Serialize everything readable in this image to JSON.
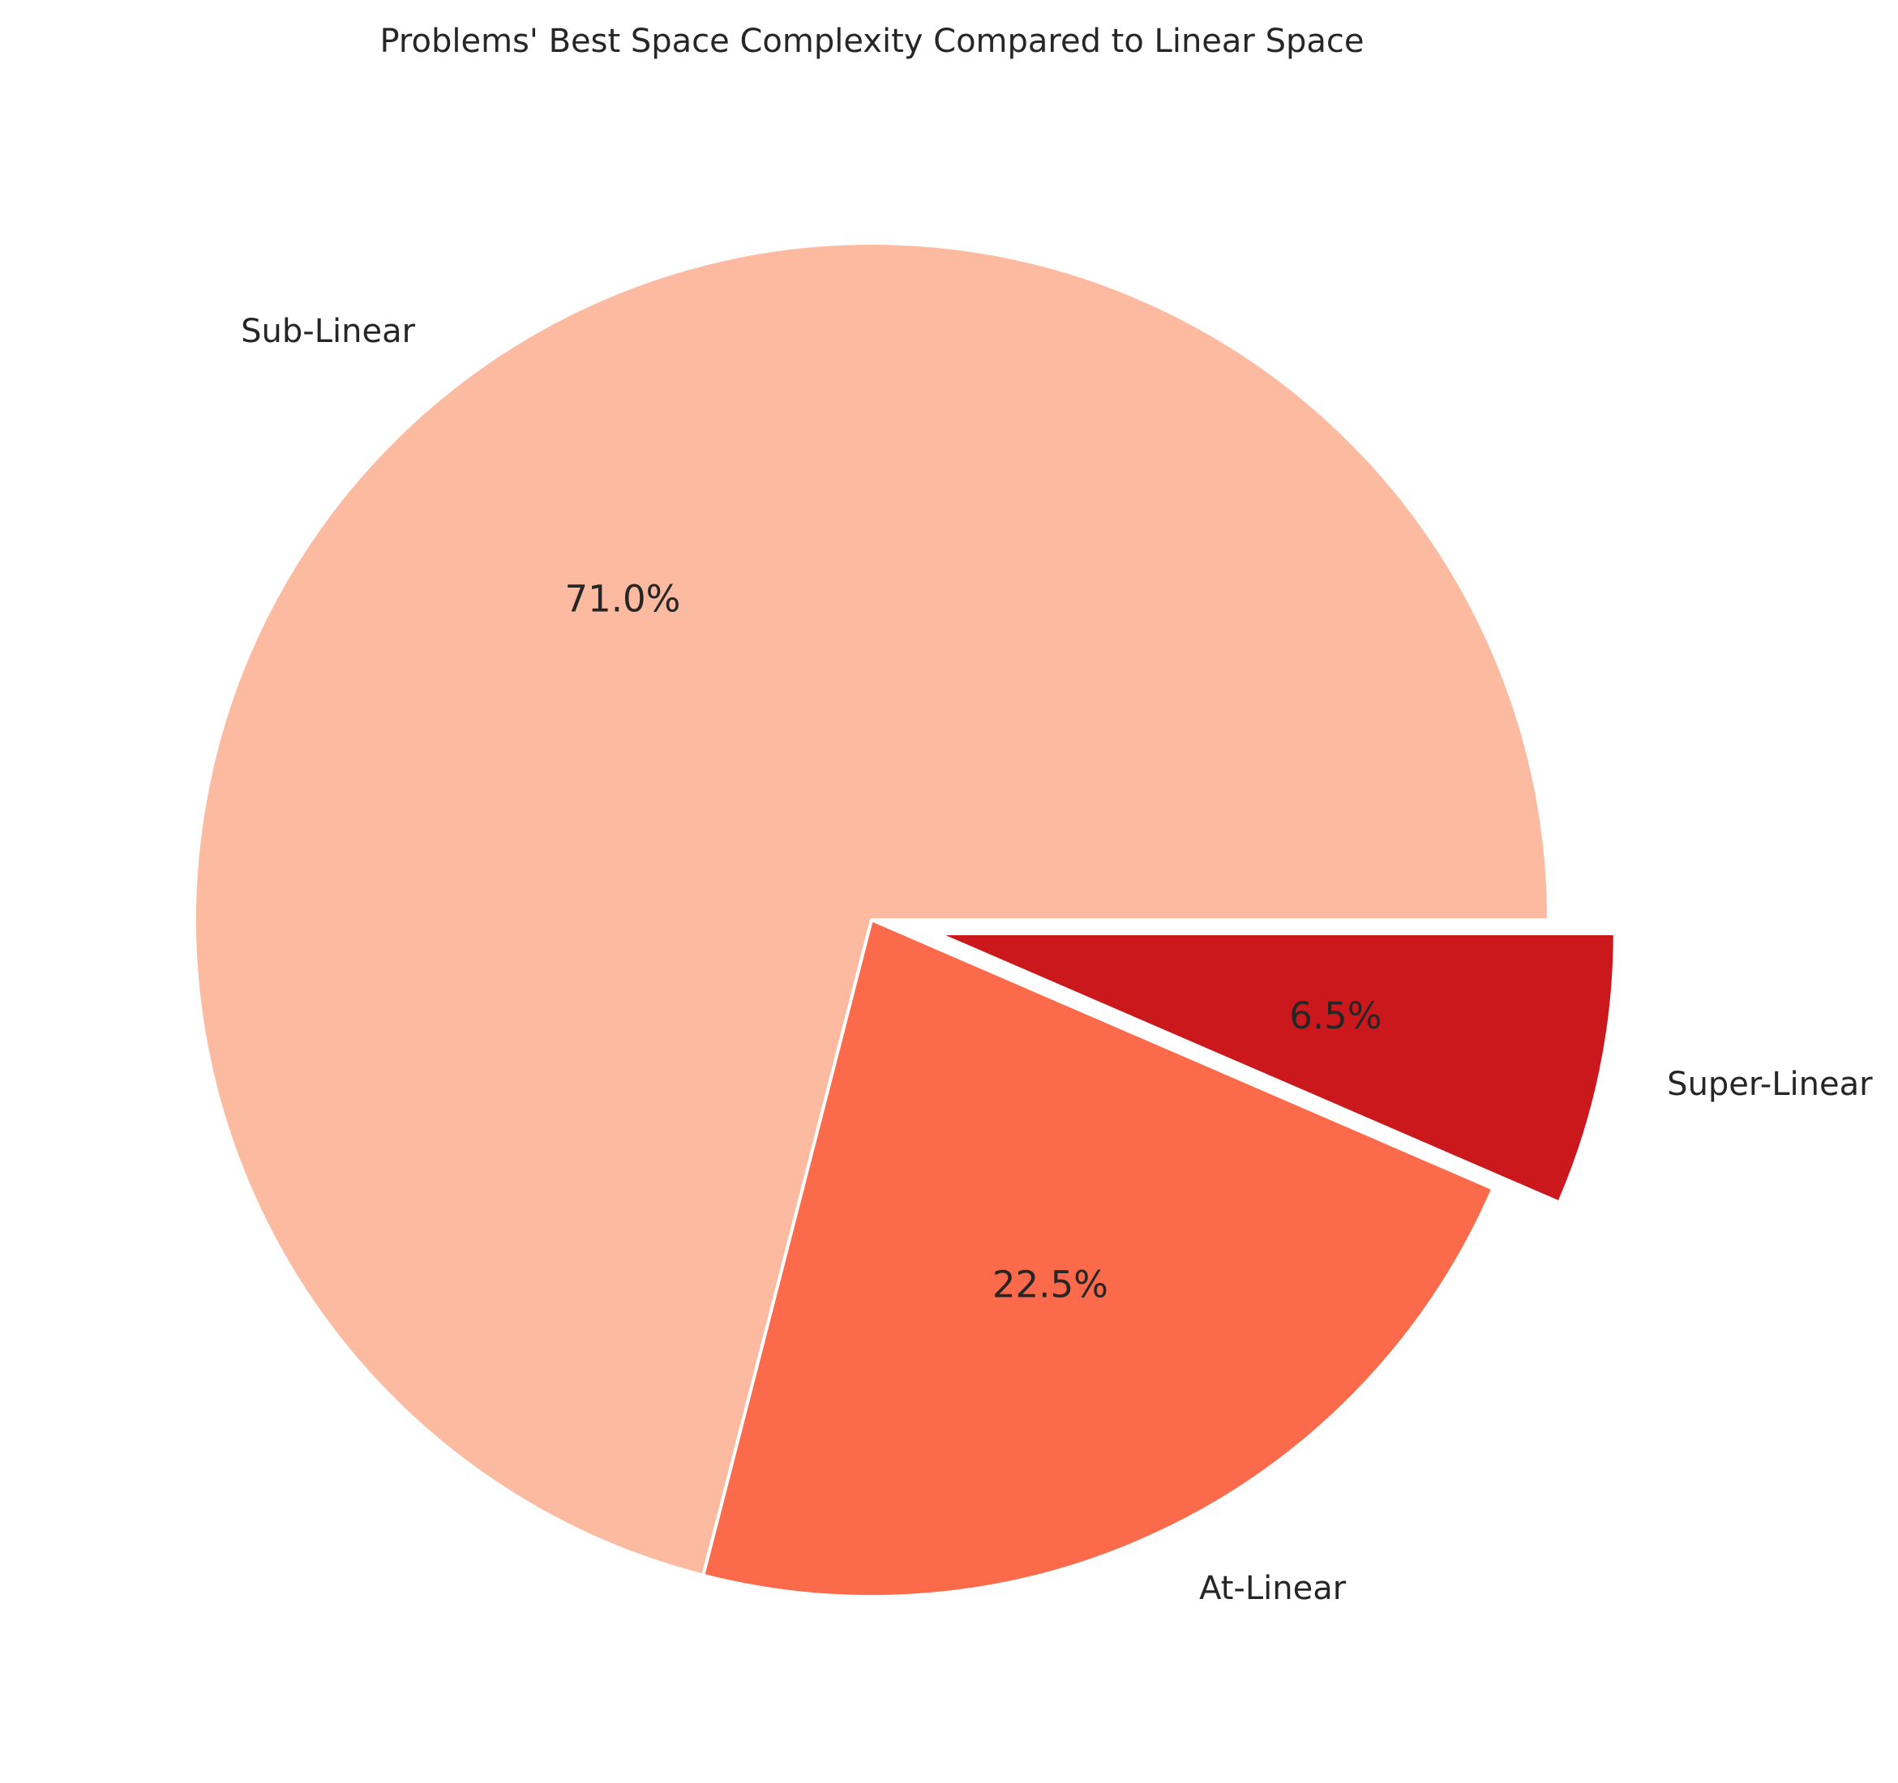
{
  "chart_data": {
    "type": "pie",
    "title": "Problems' Best Space Complexity Compared to Linear Space",
    "categories": [
      "Sub-Linear",
      "At-Linear",
      "Super-Linear"
    ],
    "values": [
      71.0,
      22.5,
      6.5
    ],
    "percent_labels": [
      "71.0%",
      "22.5%",
      "6.5%"
    ],
    "colors": [
      "#fcbba1",
      "#fb6a4a",
      "#cb181d"
    ],
    "exploded": [
      false,
      false,
      true
    ],
    "start_angle": "3 o'clock",
    "direction": "counterclockwise",
    "legend": "none"
  }
}
